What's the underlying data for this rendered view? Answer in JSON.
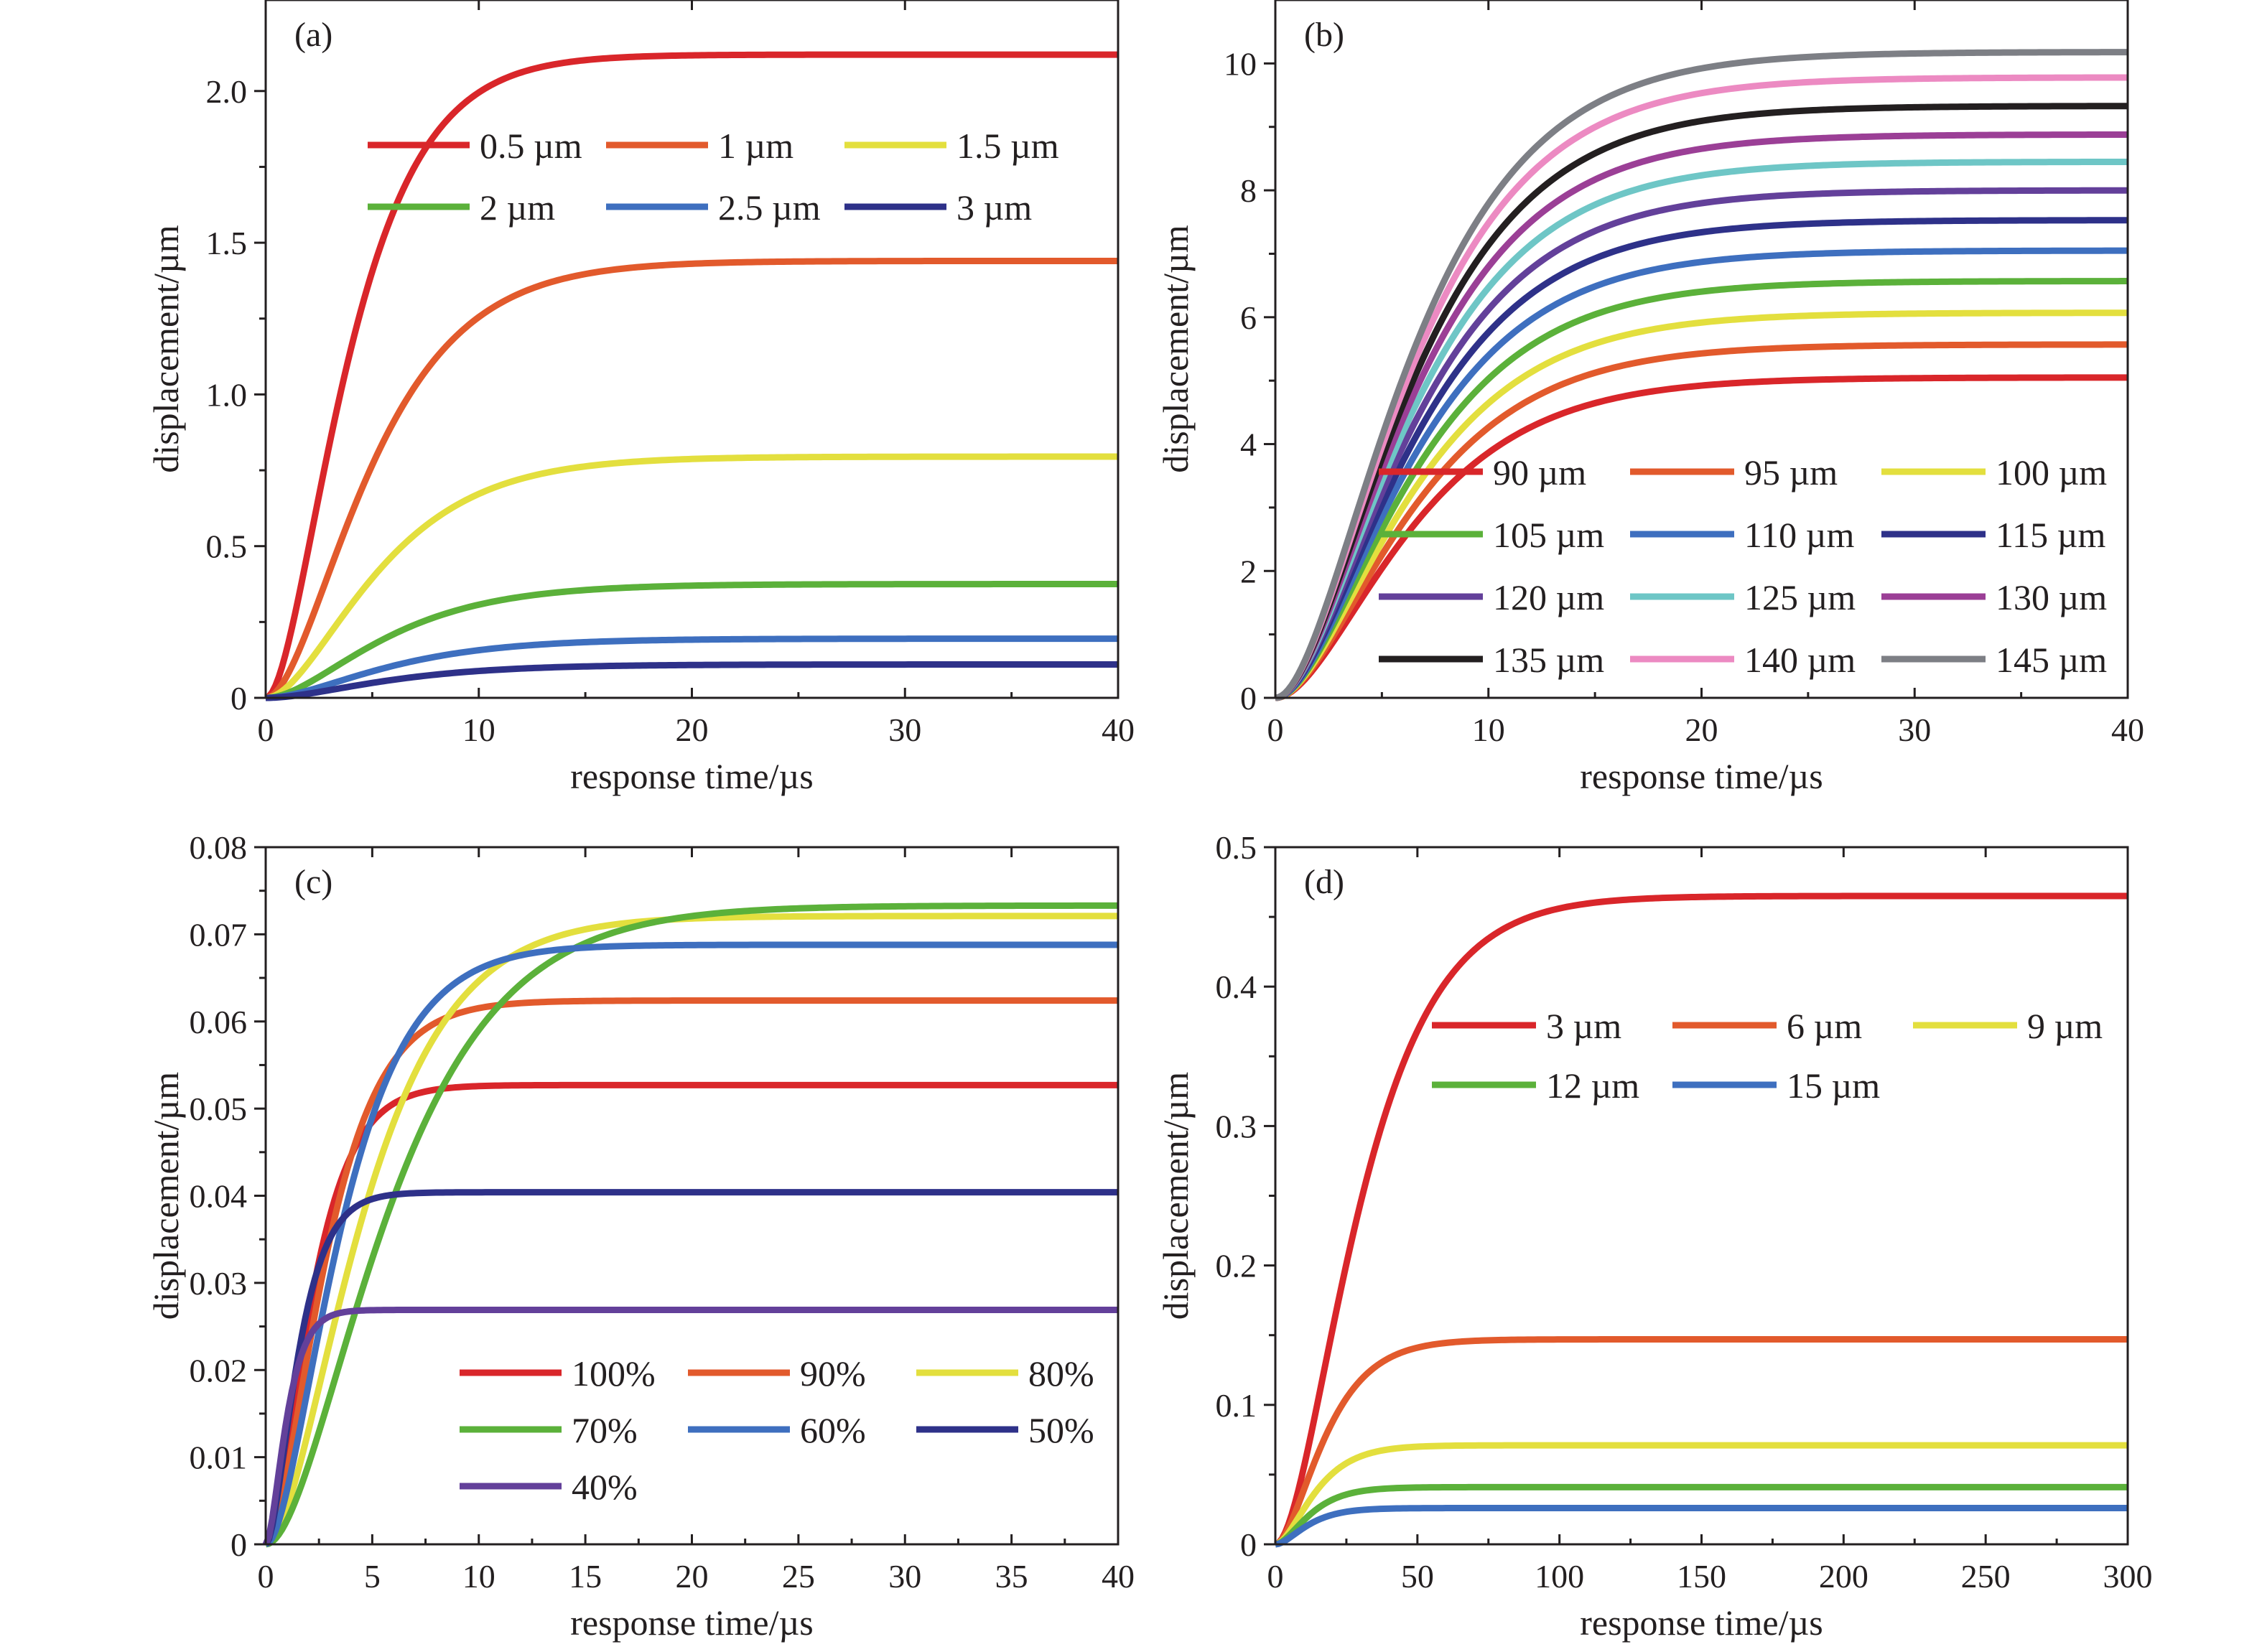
{
  "figure": {
    "layout": "2x2 grid"
  },
  "chart_data": [
    {
      "panel": "(a)",
      "type": "line",
      "xlabel": "response time/µs",
      "ylabel": "displacement/µm",
      "xlim": [
        0,
        40
      ],
      "ylim": [
        0,
        2.3
      ],
      "xticks": [
        0,
        10,
        20,
        30,
        40
      ],
      "xtick_labels": [
        "0",
        "10",
        "20",
        "30",
        "40"
      ],
      "yticks": [
        0,
        0.5,
        1.0,
        1.5,
        2.0
      ],
      "ytick_labels": [
        "0",
        "0.5",
        "1.0",
        "1.5",
        "2.0"
      ],
      "grid": false,
      "legend": {
        "position": "top",
        "columns": 3
      },
      "series": [
        {
          "name": "0.5 µm",
          "color": "#d9262a",
          "steady": 2.12,
          "tau": 2.2
        },
        {
          "name": "1 µm",
          "color": "#e25a2c",
          "steady": 1.44,
          "tau": 2.8
        },
        {
          "name": "1.5 µm",
          "color": "#e3df3e",
          "steady": 0.795,
          "tau": 3.0
        },
        {
          "name": "2 µm",
          "color": "#5bb13a",
          "steady": 0.375,
          "tau": 3.2
        },
        {
          "name": "2.5 µm",
          "color": "#3e6fbf",
          "steady": 0.195,
          "tau": 3.3
        },
        {
          "name": "3 µm",
          "color": "#2e3189",
          "steady": 0.11,
          "tau": 3.3
        }
      ]
    },
    {
      "panel": "(b)",
      "type": "line",
      "xlabel": "response time/µs",
      "ylabel": "displacement/µm",
      "xlim": [
        0,
        40
      ],
      "ylim": [
        0,
        11
      ],
      "xticks": [
        0,
        10,
        20,
        30,
        40
      ],
      "xtick_labels": [
        "0",
        "10",
        "20",
        "30",
        "40"
      ],
      "yticks": [
        0,
        2,
        4,
        6,
        8,
        10
      ],
      "ytick_labels": [
        "0",
        "2",
        "4",
        "6",
        "8",
        "10"
      ],
      "grid": false,
      "legend": {
        "position": "bottom-right",
        "columns": 3
      },
      "series": [
        {
          "name": "90 µm",
          "color": "#d9262a",
          "steady": 5.05,
          "tau": 3.6
        },
        {
          "name": "95 µm",
          "color": "#e25a2c",
          "steady": 5.57,
          "tau": 3.6
        },
        {
          "name": "100 µm",
          "color": "#e3df3e",
          "steady": 6.07,
          "tau": 3.6
        },
        {
          "name": "105 µm",
          "color": "#5bb13a",
          "steady": 6.57,
          "tau": 3.6
        },
        {
          "name": "110 µm",
          "color": "#3e6fbf",
          "steady": 7.05,
          "tau": 3.6
        },
        {
          "name": "115 µm",
          "color": "#2e3189",
          "steady": 7.53,
          "tau": 3.6
        },
        {
          "name": "120 µm",
          "color": "#63409a",
          "steady": 8.0,
          "tau": 3.6
        },
        {
          "name": "125 µm",
          "color": "#6ec6c6",
          "steady": 8.45,
          "tau": 3.6
        },
        {
          "name": "130 µm",
          "color": "#9b3f96",
          "steady": 8.88,
          "tau": 3.6
        },
        {
          "name": "135 µm",
          "color": "#231f20",
          "steady": 9.33,
          "tau": 3.6
        },
        {
          "name": "140 µm",
          "color": "#ec8ac2",
          "steady": 9.78,
          "tau": 3.6
        },
        {
          "name": "145 µm",
          "color": "#7d7f85",
          "steady": 10.18,
          "tau": 3.6
        }
      ]
    },
    {
      "panel": "(c)",
      "type": "line",
      "xlabel": "response time/µs",
      "ylabel": "displacement/µm",
      "xlim": [
        0,
        40
      ],
      "ylim": [
        0,
        0.08
      ],
      "xticks": [
        0,
        5,
        10,
        15,
        20,
        25,
        30,
        35,
        40
      ],
      "xtick_labels": [
        "0",
        "5",
        "10",
        "15",
        "20",
        "25",
        "30",
        "35",
        "40"
      ],
      "yticks": [
        0,
        0.01,
        0.02,
        0.03,
        0.04,
        0.05,
        0.06,
        0.07,
        0.08
      ],
      "ytick_labels": [
        "0",
        "0.01",
        "0.02",
        "0.03",
        "0.04",
        "0.05",
        "0.06",
        "0.07",
        "0.08"
      ],
      "grid": false,
      "legend": {
        "position": "bottom-right",
        "columns": 3
      },
      "series": [
        {
          "name": "100%",
          "color": "#d9262a",
          "steady": 0.0527,
          "tau": 1.2
        },
        {
          "name": "90%",
          "color": "#e25a2c",
          "steady": 0.0624,
          "tau": 1.6
        },
        {
          "name": "80%",
          "color": "#e3df3e",
          "steady": 0.0721,
          "tau": 2.6
        },
        {
          "name": "70%",
          "color": "#5bb13a",
          "steady": 0.0733,
          "tau": 3.3
        },
        {
          "name": "60%",
          "color": "#3e6fbf",
          "steady": 0.0688,
          "tau": 2.0
        },
        {
          "name": "50%",
          "color": "#2e3189",
          "steady": 0.0404,
          "tau": 0.85
        },
        {
          "name": "40%",
          "color": "#63409a",
          "steady": 0.0269,
          "tau": 0.55
        }
      ]
    },
    {
      "panel": "(d)",
      "type": "line",
      "xlabel": "response time/µs",
      "ylabel": "displacement/µm",
      "xlim": [
        0,
        300
      ],
      "ylim": [
        0,
        0.5
      ],
      "xticks": [
        0,
        50,
        100,
        150,
        200,
        250,
        300
      ],
      "xtick_labels": [
        "0",
        "50",
        "100",
        "150",
        "200",
        "250",
        "300"
      ],
      "yticks": [
        0,
        0.1,
        0.2,
        0.3,
        0.4,
        0.5
      ],
      "ytick_labels": [
        "0",
        "0.1",
        "0.2",
        "0.3",
        "0.4",
        "0.5"
      ],
      "grid": false,
      "legend": {
        "position": "top-right",
        "columns": 3
      },
      "series": [
        {
          "name": "3 µm",
          "color": "#d9262a",
          "steady": 0.465,
          "tau": 17
        },
        {
          "name": "6 µm",
          "color": "#e25a2c",
          "steady": 0.147,
          "tau": 10
        },
        {
          "name": "9 µm",
          "color": "#e3df3e",
          "steady": 0.071,
          "tau": 8
        },
        {
          "name": "12 µm",
          "color": "#5bb13a",
          "steady": 0.041,
          "tau": 7
        },
        {
          "name": "15 µm",
          "color": "#3e6fbf",
          "steady": 0.026,
          "tau": 6.5
        }
      ]
    }
  ]
}
